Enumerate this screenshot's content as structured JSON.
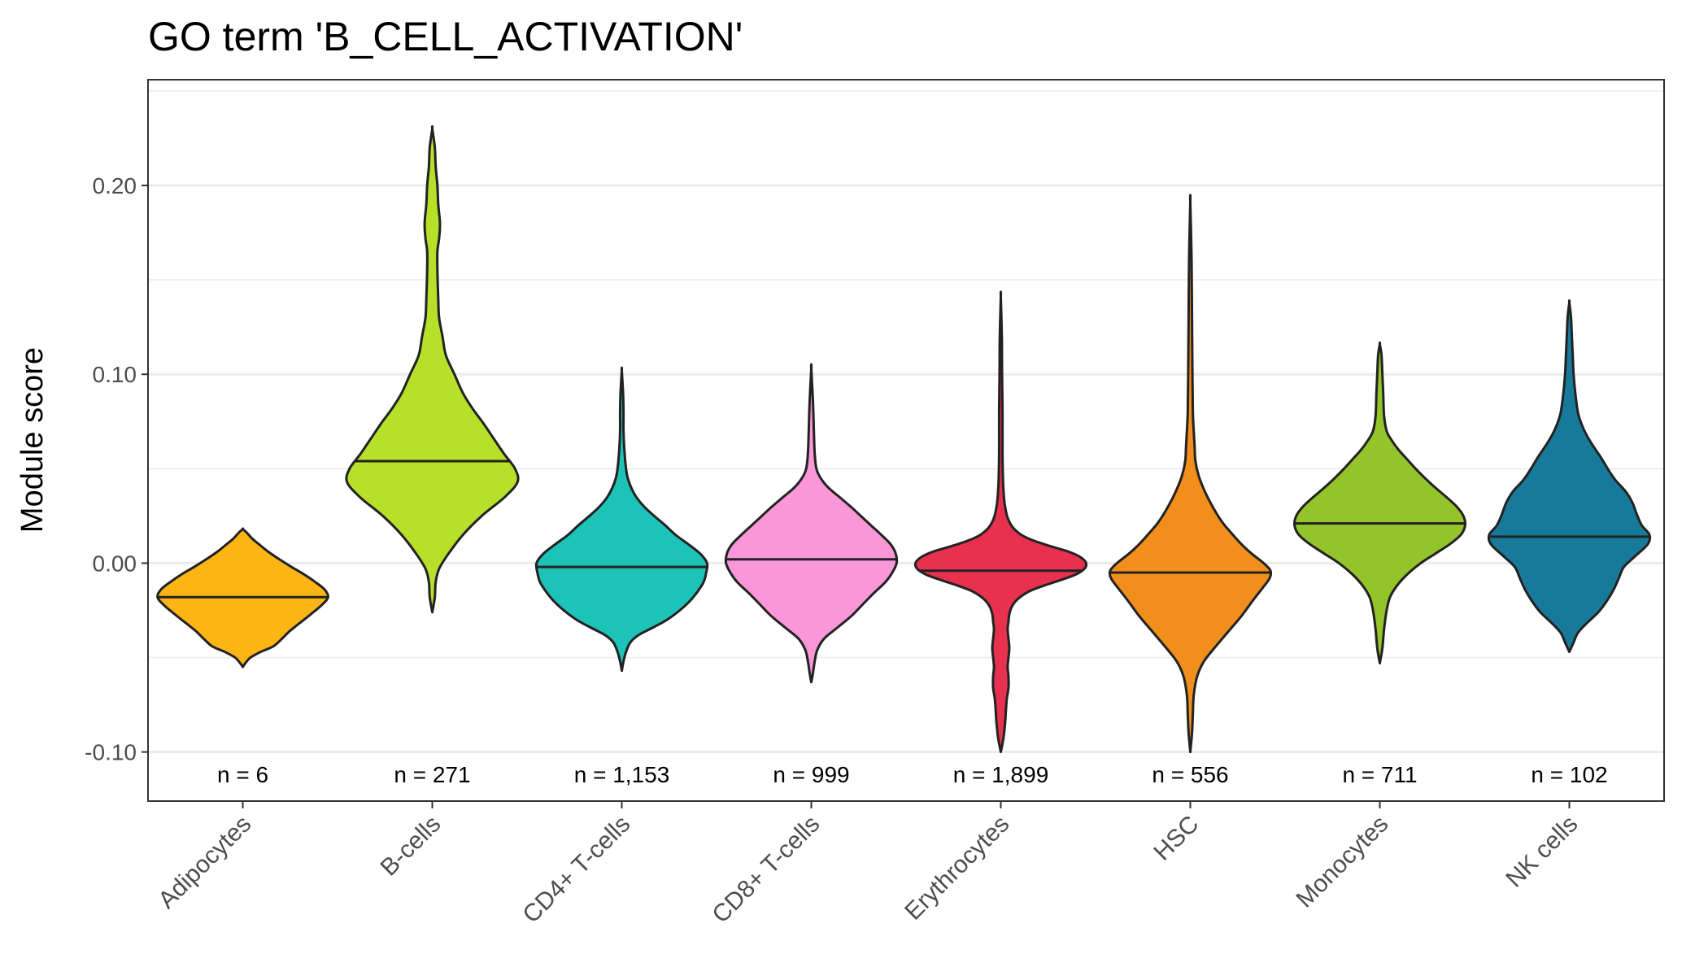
{
  "chart_data": {
    "type": "violin",
    "title": "GO term 'B_CELL_ACTIVATION'",
    "xlabel": "",
    "ylabel": "Module score",
    "ylim": [
      -0.126,
      0.256
    ],
    "yticks": [
      -0.1,
      0.0,
      0.1,
      0.2
    ],
    "ytick_labels": [
      "-0.10",
      "0.00",
      "0.10",
      "0.20"
    ],
    "grid": "on",
    "legend": "none",
    "categories": [
      {
        "name": "Adipocytes",
        "n_label": "n = 6",
        "color": "#FDB515",
        "median": -0.018,
        "density": [
          [
            -0.055,
            0.0
          ],
          [
            -0.053,
            0.03
          ],
          [
            -0.05,
            0.09
          ],
          [
            -0.047,
            0.21
          ],
          [
            -0.044,
            0.36
          ],
          [
            -0.04,
            0.46
          ],
          [
            -0.036,
            0.55
          ],
          [
            -0.032,
            0.66
          ],
          [
            -0.027,
            0.8
          ],
          [
            -0.022,
            0.93
          ],
          [
            -0.018,
            1.0
          ],
          [
            -0.014,
            0.96
          ],
          [
            -0.01,
            0.85
          ],
          [
            -0.006,
            0.72
          ],
          [
            -0.002,
            0.57
          ],
          [
            0.002,
            0.43
          ],
          [
            0.006,
            0.3
          ],
          [
            0.01,
            0.19
          ],
          [
            0.013,
            0.11
          ],
          [
            0.016,
            0.05
          ],
          [
            0.018,
            0.0
          ]
        ]
      },
      {
        "name": "B-cells",
        "n_label": "n = 271",
        "color": "#B6E02A",
        "median": 0.054,
        "density": [
          [
            -0.026,
            0.0
          ],
          [
            -0.018,
            0.03
          ],
          [
            -0.01,
            0.04
          ],
          [
            -0.003,
            0.08
          ],
          [
            0.005,
            0.19
          ],
          [
            0.015,
            0.36
          ],
          [
            0.025,
            0.58
          ],
          [
            0.035,
            0.85
          ],
          [
            0.043,
            1.0
          ],
          [
            0.05,
            0.97
          ],
          [
            0.058,
            0.84
          ],
          [
            0.066,
            0.72
          ],
          [
            0.074,
            0.6
          ],
          [
            0.082,
            0.47
          ],
          [
            0.09,
            0.36
          ],
          [
            0.1,
            0.26
          ],
          [
            0.11,
            0.16
          ],
          [
            0.12,
            0.12
          ],
          [
            0.13,
            0.08
          ],
          [
            0.14,
            0.07
          ],
          [
            0.155,
            0.06
          ],
          [
            0.165,
            0.06
          ],
          [
            0.172,
            0.08
          ],
          [
            0.18,
            0.09
          ],
          [
            0.19,
            0.07
          ],
          [
            0.2,
            0.06
          ],
          [
            0.21,
            0.04
          ],
          [
            0.22,
            0.03
          ],
          [
            0.23,
            0.0
          ]
        ]
      },
      {
        "name": "CD4+ T-cells",
        "n_label": "n = 1,153",
        "color": "#1DC3B7",
        "median": -0.002,
        "density": [
          [
            -0.057,
            0.0
          ],
          [
            -0.052,
            0.02
          ],
          [
            -0.047,
            0.05
          ],
          [
            -0.042,
            0.1
          ],
          [
            -0.038,
            0.2
          ],
          [
            -0.034,
            0.37
          ],
          [
            -0.03,
            0.53
          ],
          [
            -0.025,
            0.68
          ],
          [
            -0.02,
            0.8
          ],
          [
            -0.015,
            0.89
          ],
          [
            -0.01,
            0.96
          ],
          [
            -0.005,
            0.99
          ],
          [
            0.0,
            1.0
          ],
          [
            0.005,
            0.92
          ],
          [
            0.01,
            0.78
          ],
          [
            0.015,
            0.63
          ],
          [
            0.02,
            0.51
          ],
          [
            0.025,
            0.38
          ],
          [
            0.03,
            0.26
          ],
          [
            0.035,
            0.17
          ],
          [
            0.04,
            0.11
          ],
          [
            0.045,
            0.07
          ],
          [
            0.05,
            0.05
          ],
          [
            0.06,
            0.03
          ],
          [
            0.07,
            0.02
          ],
          [
            0.08,
            0.02
          ],
          [
            0.09,
            0.015
          ],
          [
            0.102,
            0.0
          ]
        ]
      },
      {
        "name": "CD8+ T-cells",
        "n_label": "n = 999",
        "color": "#F997D8",
        "median": 0.002,
        "density": [
          [
            -0.063,
            0.0
          ],
          [
            -0.058,
            0.02
          ],
          [
            -0.052,
            0.04
          ],
          [
            -0.046,
            0.07
          ],
          [
            -0.04,
            0.15
          ],
          [
            -0.034,
            0.31
          ],
          [
            -0.028,
            0.47
          ],
          [
            -0.022,
            0.6
          ],
          [
            -0.016,
            0.73
          ],
          [
            -0.01,
            0.87
          ],
          [
            -0.005,
            0.95
          ],
          [
            0.0,
            1.0
          ],
          [
            0.005,
            0.99
          ],
          [
            0.01,
            0.93
          ],
          [
            0.015,
            0.82
          ],
          [
            0.02,
            0.7
          ],
          [
            0.025,
            0.58
          ],
          [
            0.03,
            0.46
          ],
          [
            0.035,
            0.33
          ],
          [
            0.04,
            0.2
          ],
          [
            0.045,
            0.11
          ],
          [
            0.05,
            0.06
          ],
          [
            0.058,
            0.04
          ],
          [
            0.07,
            0.03
          ],
          [
            0.085,
            0.02
          ],
          [
            0.103,
            0.0
          ]
        ]
      },
      {
        "name": "Erythrocytes",
        "n_label": "n = 1,899",
        "color": "#E8304F",
        "median": -0.004,
        "density": [
          [
            -0.1,
            0.0
          ],
          [
            -0.093,
            0.03
          ],
          [
            -0.085,
            0.05
          ],
          [
            -0.078,
            0.06
          ],
          [
            -0.072,
            0.07
          ],
          [
            -0.066,
            0.09
          ],
          [
            -0.06,
            0.09
          ],
          [
            -0.055,
            0.08
          ],
          [
            -0.05,
            0.09
          ],
          [
            -0.045,
            0.1
          ],
          [
            -0.04,
            0.09
          ],
          [
            -0.035,
            0.08
          ],
          [
            -0.031,
            0.09
          ],
          [
            -0.027,
            0.1
          ],
          [
            -0.023,
            0.13
          ],
          [
            -0.019,
            0.2
          ],
          [
            -0.015,
            0.33
          ],
          [
            -0.012,
            0.5
          ],
          [
            -0.009,
            0.7
          ],
          [
            -0.006,
            0.88
          ],
          [
            -0.003,
            0.98
          ],
          [
            0.0,
            1.0
          ],
          [
            0.003,
            0.94
          ],
          [
            0.006,
            0.8
          ],
          [
            0.009,
            0.58
          ],
          [
            0.012,
            0.38
          ],
          [
            0.015,
            0.24
          ],
          [
            0.019,
            0.14
          ],
          [
            0.024,
            0.08
          ],
          [
            0.03,
            0.05
          ],
          [
            0.036,
            0.035
          ],
          [
            0.045,
            0.025
          ],
          [
            0.06,
            0.02
          ],
          [
            0.08,
            0.02
          ],
          [
            0.1,
            0.015
          ],
          [
            0.12,
            0.012
          ],
          [
            0.141,
            0.0
          ]
        ]
      },
      {
        "name": "HSC",
        "n_label": "n = 556",
        "color": "#F28E1C",
        "median": -0.005,
        "density": [
          [
            -0.1,
            0.0
          ],
          [
            -0.09,
            0.02
          ],
          [
            -0.08,
            0.03
          ],
          [
            -0.07,
            0.04
          ],
          [
            -0.06,
            0.08
          ],
          [
            -0.052,
            0.16
          ],
          [
            -0.044,
            0.3
          ],
          [
            -0.036,
            0.45
          ],
          [
            -0.028,
            0.6
          ],
          [
            -0.02,
            0.73
          ],
          [
            -0.013,
            0.85
          ],
          [
            -0.008,
            0.93
          ],
          [
            -0.004,
            0.94
          ],
          [
            0.0,
            0.86
          ],
          [
            0.005,
            0.72
          ],
          [
            0.01,
            0.6
          ],
          [
            0.016,
            0.48
          ],
          [
            0.022,
            0.37
          ],
          [
            0.03,
            0.26
          ],
          [
            0.038,
            0.17
          ],
          [
            0.046,
            0.1
          ],
          [
            0.054,
            0.06
          ],
          [
            0.062,
            0.05
          ],
          [
            0.07,
            0.04
          ],
          [
            0.08,
            0.03
          ],
          [
            0.1,
            0.025
          ],
          [
            0.13,
            0.02
          ],
          [
            0.16,
            0.015
          ],
          [
            0.191,
            0.0
          ]
        ]
      },
      {
        "name": "Monocytes",
        "n_label": "n = 711",
        "color": "#93C42A",
        "median": 0.021,
        "density": [
          [
            -0.053,
            0.0
          ],
          [
            -0.045,
            0.03
          ],
          [
            -0.035,
            0.05
          ],
          [
            -0.025,
            0.08
          ],
          [
            -0.018,
            0.12
          ],
          [
            -0.012,
            0.2
          ],
          [
            -0.006,
            0.32
          ],
          [
            0.0,
            0.48
          ],
          [
            0.005,
            0.65
          ],
          [
            0.01,
            0.82
          ],
          [
            0.015,
            0.95
          ],
          [
            0.02,
            1.0
          ],
          [
            0.025,
            0.98
          ],
          [
            0.03,
            0.9
          ],
          [
            0.035,
            0.78
          ],
          [
            0.04,
            0.65
          ],
          [
            0.045,
            0.53
          ],
          [
            0.05,
            0.42
          ],
          [
            0.055,
            0.32
          ],
          [
            0.06,
            0.22
          ],
          [
            0.065,
            0.14
          ],
          [
            0.07,
            0.08
          ],
          [
            0.078,
            0.05
          ],
          [
            0.09,
            0.04
          ],
          [
            0.1,
            0.03
          ],
          [
            0.11,
            0.02
          ],
          [
            0.116,
            0.0
          ]
        ]
      },
      {
        "name": "NK cells",
        "n_label": "n = 102",
        "color": "#187A9A",
        "median": 0.014,
        "density": [
          [
            -0.047,
            0.0
          ],
          [
            -0.042,
            0.05
          ],
          [
            -0.037,
            0.1
          ],
          [
            -0.032,
            0.2
          ],
          [
            -0.026,
            0.34
          ],
          [
            -0.02,
            0.44
          ],
          [
            -0.014,
            0.52
          ],
          [
            -0.008,
            0.58
          ],
          [
            -0.002,
            0.64
          ],
          [
            0.004,
            0.78
          ],
          [
            0.01,
            0.92
          ],
          [
            0.015,
            0.94
          ],
          [
            0.02,
            0.85
          ],
          [
            0.026,
            0.79
          ],
          [
            0.032,
            0.74
          ],
          [
            0.038,
            0.66
          ],
          [
            0.044,
            0.54
          ],
          [
            0.05,
            0.45
          ],
          [
            0.056,
            0.37
          ],
          [
            0.062,
            0.28
          ],
          [
            0.068,
            0.2
          ],
          [
            0.074,
            0.14
          ],
          [
            0.08,
            0.1
          ],
          [
            0.09,
            0.07
          ],
          [
            0.1,
            0.05
          ],
          [
            0.11,
            0.04
          ],
          [
            0.12,
            0.03
          ],
          [
            0.13,
            0.02
          ],
          [
            0.138,
            0.0
          ]
        ]
      }
    ]
  }
}
